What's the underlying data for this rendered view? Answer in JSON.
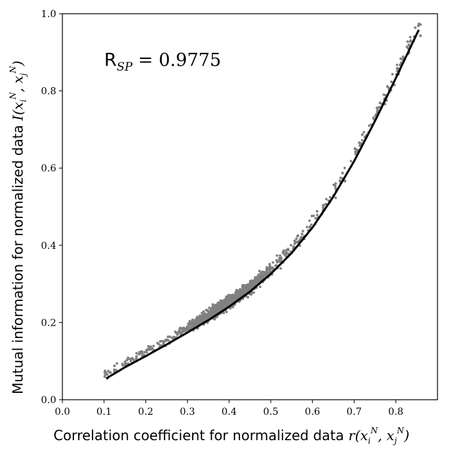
{
  "chart_data": {
    "type": "scatter",
    "title": "",
    "xlabel": "Correlation coefficient for normalized data r(x_i^N, x_j^N)",
    "xlabel_text": "Correlation coefficient for normalized data",
    "ylabel": "Mutual information for normalized data I(x_i^N, x_j^N)",
    "ylabel_text": "Mutual information for normalized data",
    "xlim": [
      0.0,
      0.9
    ],
    "ylim": [
      0.0,
      1.0
    ],
    "xticks": [
      0.0,
      0.1,
      0.2,
      0.3,
      0.4,
      0.5,
      0.6,
      0.7,
      0.8
    ],
    "yticks": [
      0.0,
      0.2,
      0.4,
      0.6,
      0.8,
      1.0
    ],
    "annotation": "R_SP = 0.9775",
    "annotation_value": "0.9775",
    "grid": false,
    "series": [
      {
        "name": "pairwise points",
        "kind": "scatter",
        "color": "#808080",
        "x_range": [
          0.1,
          0.86
        ],
        "note": "dense cloud of gray points following the fitted curve"
      },
      {
        "name": "fitted curve",
        "kind": "line",
        "color": "#000000",
        "x": [
          0.105,
          0.15,
          0.2,
          0.25,
          0.3,
          0.35,
          0.4,
          0.45,
          0.5,
          0.55,
          0.6,
          0.65,
          0.7,
          0.75,
          0.8,
          0.855
        ],
        "y": [
          0.055,
          0.084,
          0.113,
          0.143,
          0.174,
          0.206,
          0.241,
          0.28,
          0.326,
          0.38,
          0.446,
          0.526,
          0.618,
          0.722,
          0.833,
          0.958
        ]
      }
    ]
  }
}
